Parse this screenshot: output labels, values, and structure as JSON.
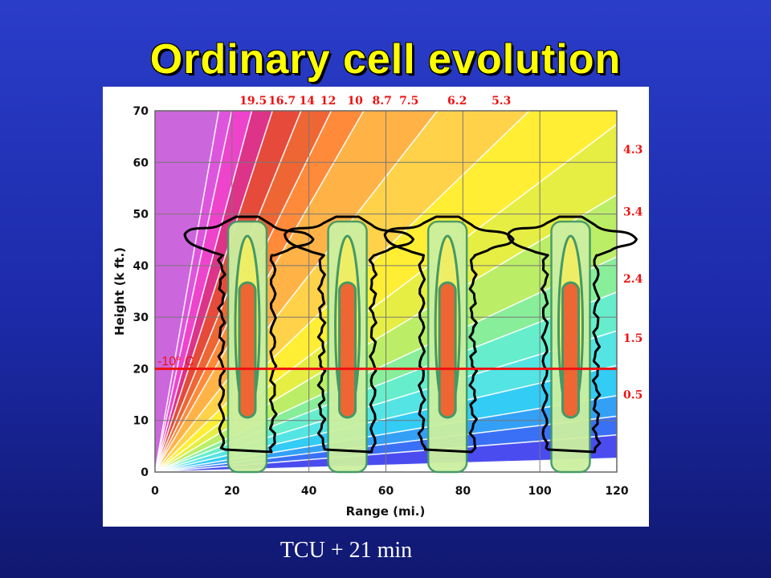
{
  "slide": {
    "title": "Ordinary cell evolution",
    "caption": "TCU + 21 min"
  },
  "figure": {
    "x_axis_label": "Range (mi.)",
    "y_axis_label": "Height (k ft.)",
    "x_ticks": [
      "0",
      "20",
      "40",
      "60",
      "80",
      "100",
      "120"
    ],
    "y_ticks": [
      "0",
      "10",
      "20",
      "30",
      "40",
      "50",
      "60",
      "70"
    ],
    "top_labels": [
      "19.5",
      "16.7",
      "14",
      "12",
      "10",
      "8.7",
      "7.5",
      "6.2",
      "5.3"
    ],
    "right_labels": [
      "4.3",
      "3.4",
      "2.4",
      "1.5",
      "0.5"
    ],
    "isotherm_label": "-10° C",
    "isotherm_height": 20,
    "cells": 4
  },
  "colors": {
    "background": "#1c2aa8",
    "title": "#ffff00",
    "isotherm": "#ee1111",
    "cell_core": "#ee6633",
    "cell_mid": "#eeee66",
    "cell_outer": "#ccf0a0",
    "cell_outline": "#449966"
  }
}
